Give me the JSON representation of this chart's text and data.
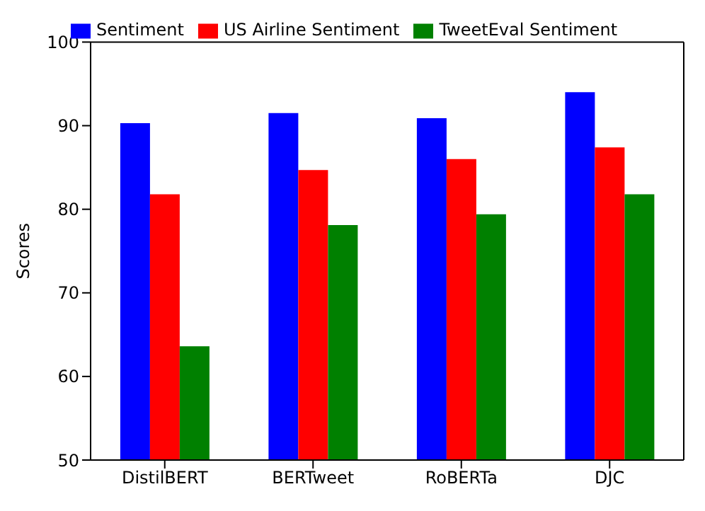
{
  "chart_data": {
    "type": "bar",
    "ylabel": "Scores",
    "categories": [
      "DistilBERT",
      "BERTweet",
      "RoBERTa",
      "DJC"
    ],
    "series": [
      {
        "name": "Sentiment",
        "color": "#0000ff",
        "values": [
          90.3,
          91.5,
          90.9,
          94.0
        ]
      },
      {
        "name": "US Airline Sentiment",
        "color": "#ff0000",
        "values": [
          81.8,
          84.7,
          86.0,
          87.4
        ]
      },
      {
        "name": "TweetEval Sentiment",
        "color": "#008000",
        "values": [
          63.6,
          78.1,
          79.4,
          81.8
        ]
      }
    ],
    "ylim": [
      50,
      100
    ],
    "yticks": [
      50,
      60,
      70,
      80,
      90,
      100
    ],
    "grid": false,
    "legend": "top"
  }
}
